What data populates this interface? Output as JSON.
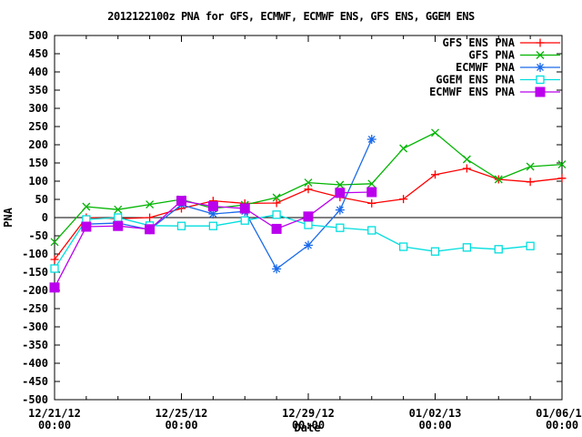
{
  "title": "2012122100z PNA for GFS, ECMWF, ECMWF ENS, GFS ENS, GGEM ENS",
  "colors": {
    "background": "#ffffff",
    "axis": "#000000"
  },
  "chart_data": {
    "type": "line",
    "title": "2012122100z PNA for GFS, ECMWF, ECMWF ENS, GFS ENS, GGEM ENS",
    "xlabel": "Date",
    "ylabel": "PNA",
    "ylim": [
      -500,
      500
    ],
    "y_tick_step": 50,
    "x_day_range": [
      0,
      16
    ],
    "x_minor_tick_every_days": 1,
    "grid": false,
    "zero_line": true,
    "legend_position": "top-right",
    "x_major_ticks": [
      {
        "day": 0,
        "date": "12/21/12",
        "time": "00:00"
      },
      {
        "day": 4,
        "date": "12/25/12",
        "time": "00:00"
      },
      {
        "day": 8,
        "date": "12/29/12",
        "time": "00:00"
      },
      {
        "day": 12,
        "date": "01/02/13",
        "time": "00:00"
      },
      {
        "day": 16,
        "date": "01/06/13",
        "time": "00:00"
      }
    ],
    "series": [
      {
        "name": "GFS ENS PNA",
        "color": "#ff0000",
        "marker": "plus",
        "points": [
          [
            0,
            -115
          ],
          [
            1,
            0
          ],
          [
            2,
            -3
          ],
          [
            3,
            0
          ],
          [
            4,
            25
          ],
          [
            5,
            46
          ],
          [
            6,
            39
          ],
          [
            7,
            40
          ],
          [
            8,
            78
          ],
          [
            9,
            56
          ],
          [
            10,
            39
          ],
          [
            11,
            51
          ],
          [
            12,
            118
          ],
          [
            13,
            135
          ],
          [
            14,
            105
          ],
          [
            15,
            98
          ],
          [
            16,
            108
          ]
        ]
      },
      {
        "name": "GFS PNA",
        "color": "#00b400",
        "marker": "cross",
        "points": [
          [
            0,
            -67
          ],
          [
            1,
            30
          ],
          [
            2,
            22
          ],
          [
            3,
            36
          ],
          [
            4,
            50
          ],
          [
            5,
            25
          ],
          [
            6,
            35
          ],
          [
            7,
            55
          ],
          [
            8,
            96
          ],
          [
            9,
            90
          ],
          [
            10,
            93
          ],
          [
            11,
            190
          ],
          [
            12,
            233
          ],
          [
            13,
            160
          ],
          [
            14,
            105
          ],
          [
            15,
            140
          ],
          [
            16,
            146
          ]
        ]
      },
      {
        "name": "ECMWF PNA",
        "color": "#1a6aeb",
        "marker": "asterisk",
        "points": [
          [
            1,
            -18
          ],
          [
            2,
            -15
          ],
          [
            3,
            -33
          ],
          [
            4,
            35
          ],
          [
            5,
            10
          ],
          [
            6,
            17
          ],
          [
            7,
            -141
          ],
          [
            8,
            -76
          ],
          [
            9,
            21
          ],
          [
            10,
            215
          ]
        ]
      },
      {
        "name": "GGEM ENS PNA",
        "color": "#00dede",
        "marker": "square-open",
        "points": [
          [
            0,
            -140
          ],
          [
            1,
            -5
          ],
          [
            2,
            0
          ],
          [
            3,
            -22
          ],
          [
            4,
            -23
          ],
          [
            5,
            -23
          ],
          [
            6,
            -8
          ],
          [
            7,
            8
          ],
          [
            8,
            -20
          ],
          [
            9,
            -28
          ],
          [
            10,
            -35
          ],
          [
            11,
            -80
          ],
          [
            12,
            -93
          ],
          [
            13,
            -82
          ],
          [
            14,
            -87
          ],
          [
            15,
            -78
          ]
        ]
      },
      {
        "name": "ECMWF ENS PNA",
        "color": "#bb00ee",
        "marker": "square-filled",
        "points": [
          [
            0,
            -192
          ],
          [
            1,
            -25
          ],
          [
            2,
            -23
          ],
          [
            3,
            -32
          ],
          [
            4,
            46
          ],
          [
            5,
            31
          ],
          [
            6,
            25
          ],
          [
            7,
            -31
          ],
          [
            8,
            3
          ],
          [
            9,
            68
          ],
          [
            10,
            70
          ]
        ]
      }
    ]
  }
}
